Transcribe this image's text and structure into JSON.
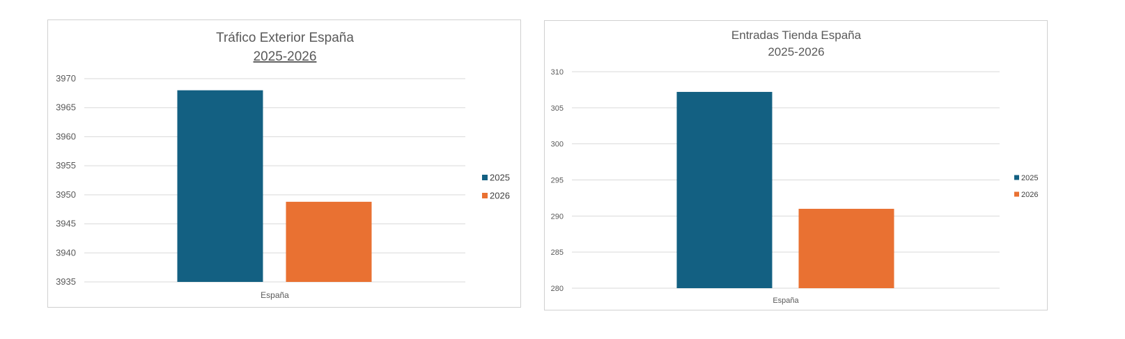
{
  "colors": {
    "series_2025": "#136082",
    "series_2026": "#E97132",
    "gridline": "#d9d9d9",
    "text": "#595959"
  },
  "chart_data": [
    {
      "type": "bar",
      "title": "Tráfico Exterior España",
      "subtitle": "2025-2026",
      "categories": [
        "España"
      ],
      "series": [
        {
          "name": "2025",
          "values": [
            3968
          ]
        },
        {
          "name": "2026",
          "values": [
            3948.8
          ]
        }
      ],
      "ylim": [
        3935,
        3970
      ],
      "yticks": [
        "3935",
        "3940",
        "3945",
        "3950",
        "3955",
        "3960",
        "3965",
        "3970"
      ],
      "xlabel": "",
      "ylabel": "",
      "grid": true,
      "legend": "right"
    },
    {
      "type": "bar",
      "title": "Entradas Tienda España",
      "subtitle": "2025-2026",
      "categories": [
        "España"
      ],
      "series": [
        {
          "name": "2025",
          "values": [
            307.2
          ]
        },
        {
          "name": "2026",
          "values": [
            291
          ]
        }
      ],
      "ylim": [
        280,
        310
      ],
      "yticks": [
        "280",
        "285",
        "290",
        "295",
        "300",
        "305",
        "310"
      ],
      "xlabel": "",
      "ylabel": "",
      "grid": true,
      "legend": "right"
    }
  ]
}
